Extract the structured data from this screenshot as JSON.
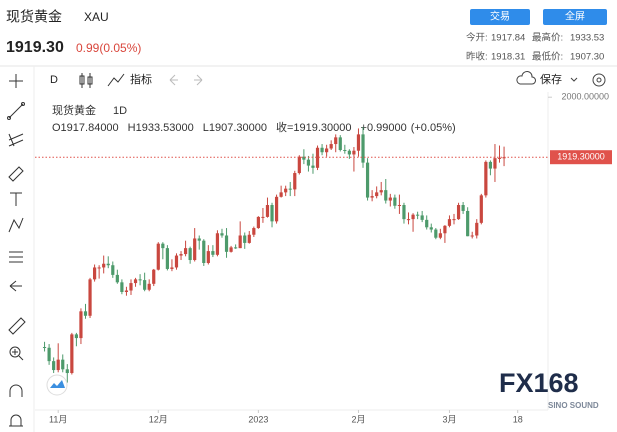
{
  "header": {
    "title": "现货黄金",
    "symbol": "XAU",
    "price": "1919.30",
    "change": "0.99(0.05%)",
    "buttons": [
      "交易",
      "全屏"
    ],
    "stats": [
      [
        "今开:",
        "1917.84",
        "最高价:",
        "1933.53"
      ],
      [
        "昨收:",
        "1918.31",
        "最低价:",
        "1907.30"
      ]
    ]
  },
  "toolbar": {
    "interval": "D",
    "indicators": "指标",
    "save": "保存"
  },
  "chart_data": {
    "type": "candlestick",
    "title": "现货黄金",
    "interval": "1D",
    "ohlc_legend": [
      "O1917.84000",
      "H1933.53000",
      "L1907.30000",
      "收=1919.30000",
      "+0.99000",
      "(+0.05%)"
    ],
    "up_color": "#c9473f",
    "down_color": "#4d9a6b",
    "ohlc": [
      [
        1664,
        1671,
        1658,
        1663
      ],
      [
        1663,
        1668,
        1640,
        1645
      ],
      [
        1645,
        1650,
        1629,
        1633
      ],
      [
        1633,
        1669,
        1630,
        1647
      ],
      [
        1647,
        1654,
        1630,
        1634
      ],
      [
        1634,
        1641,
        1616,
        1629
      ],
      [
        1629,
        1683,
        1627,
        1681
      ],
      [
        1681,
        1683,
        1665,
        1676
      ],
      [
        1676,
        1716,
        1668,
        1712
      ],
      [
        1712,
        1722,
        1702,
        1706
      ],
      [
        1706,
        1757,
        1703,
        1755
      ],
      [
        1755,
        1775,
        1752,
        1771
      ],
      [
        1771,
        1774,
        1756,
        1771
      ],
      [
        1771,
        1787,
        1763,
        1776
      ],
      [
        1776,
        1786,
        1770,
        1774
      ],
      [
        1774,
        1779,
        1757,
        1761
      ],
      [
        1761,
        1768,
        1749,
        1751
      ],
      [
        1751,
        1755,
        1735,
        1738
      ],
      [
        1738,
        1745,
        1733,
        1740
      ],
      [
        1740,
        1755,
        1734,
        1750
      ],
      [
        1750,
        1757,
        1745,
        1755
      ],
      [
        1755,
        1762,
        1747,
        1754
      ],
      [
        1754,
        1764,
        1739,
        1741
      ],
      [
        1741,
        1755,
        1739,
        1749
      ],
      [
        1749,
        1769,
        1746,
        1768
      ],
      [
        1768,
        1805,
        1767,
        1803
      ],
      [
        1803,
        1805,
        1782,
        1797
      ],
      [
        1797,
        1801,
        1767,
        1769
      ],
      [
        1769,
        1782,
        1766,
        1771
      ],
      [
        1771,
        1790,
        1768,
        1787
      ],
      [
        1787,
        1793,
        1781,
        1789
      ],
      [
        1789,
        1807,
        1786,
        1797
      ],
      [
        1797,
        1799,
        1776,
        1781
      ],
      [
        1781,
        1824,
        1779,
        1810
      ],
      [
        1810,
        1814,
        1795,
        1807
      ],
      [
        1807,
        1809,
        1773,
        1777
      ],
      [
        1777,
        1801,
        1775,
        1793
      ],
      [
        1793,
        1801,
        1785,
        1788
      ],
      [
        1788,
        1821,
        1786,
        1817
      ],
      [
        1817,
        1823,
        1811,
        1814
      ],
      [
        1814,
        1824,
        1784,
        1792
      ],
      [
        1792,
        1800,
        1791,
        1798
      ],
      [
        1798,
        1802,
        1796,
        1797
      ],
      [
        1797,
        1833,
        1797,
        1814
      ],
      [
        1814,
        1818,
        1796,
        1804
      ],
      [
        1804,
        1820,
        1803,
        1815
      ],
      [
        1815,
        1826,
        1812,
        1824
      ],
      [
        1824,
        1840,
        1823,
        1839
      ],
      [
        1839,
        1851,
        1831,
        1839
      ],
      [
        1839,
        1865,
        1838,
        1855
      ],
      [
        1855,
        1858,
        1825,
        1833
      ],
      [
        1833,
        1869,
        1830,
        1866
      ],
      [
        1866,
        1881,
        1865,
        1872
      ],
      [
        1872,
        1881,
        1867,
        1877
      ],
      [
        1877,
        1886,
        1867,
        1876
      ],
      [
        1876,
        1901,
        1867,
        1898
      ],
      [
        1898,
        1922,
        1896,
        1920
      ],
      [
        1920,
        1930,
        1910,
        1916
      ],
      [
        1916,
        1921,
        1900,
        1908
      ],
      [
        1908,
        1924,
        1897,
        1905
      ],
      [
        1905,
        1935,
        1902,
        1932
      ],
      [
        1932,
        1937,
        1922,
        1926
      ],
      [
        1926,
        1936,
        1920,
        1931
      ],
      [
        1931,
        1942,
        1929,
        1937
      ],
      [
        1937,
        1950,
        1926,
        1946
      ],
      [
        1946,
        1949,
        1927,
        1929
      ],
      [
        1929,
        1936,
        1924,
        1928
      ],
      [
        1928,
        1930,
        1917,
        1923
      ],
      [
        1923,
        1933,
        1900,
        1928
      ],
      [
        1928,
        1958,
        1920,
        1950
      ],
      [
        1950,
        1960,
        1905,
        1912
      ],
      [
        1912,
        1918,
        1861,
        1865
      ],
      [
        1865,
        1875,
        1860,
        1867
      ],
      [
        1867,
        1880,
        1864,
        1872
      ],
      [
        1872,
        1886,
        1868,
        1875
      ],
      [
        1875,
        1890,
        1857,
        1861
      ],
      [
        1861,
        1870,
        1853,
        1865
      ],
      [
        1865,
        1869,
        1850,
        1854
      ],
      [
        1854,
        1869,
        1843,
        1855
      ],
      [
        1855,
        1858,
        1830,
        1836
      ],
      [
        1836,
        1845,
        1829,
        1836
      ],
      [
        1836,
        1844,
        1819,
        1842
      ],
      [
        1842,
        1846,
        1836,
        1841
      ],
      [
        1841,
        1847,
        1832,
        1835
      ],
      [
        1835,
        1841,
        1822,
        1825
      ],
      [
        1825,
        1830,
        1818,
        1822
      ],
      [
        1822,
        1824,
        1809,
        1811
      ],
      [
        1811,
        1823,
        1809,
        1817
      ],
      [
        1817,
        1828,
        1804,
        1827
      ],
      [
        1827,
        1841,
        1825,
        1836
      ],
      [
        1836,
        1843,
        1829,
        1836
      ],
      [
        1836,
        1858,
        1835,
        1855
      ],
      [
        1855,
        1859,
        1843,
        1847
      ],
      [
        1847,
        1852,
        1813,
        1813
      ],
      [
        1813,
        1819,
        1810,
        1814
      ],
      [
        1814,
        1836,
        1810,
        1831
      ],
      [
        1831,
        1870,
        1829,
        1868
      ],
      [
        1868,
        1915,
        1865,
        1913
      ],
      [
        1913,
        1915,
        1895,
        1904
      ],
      [
        1904,
        1937,
        1886,
        1918
      ],
      [
        1918,
        1935,
        1912,
        1918.31
      ],
      [
        1917.84,
        1933.53,
        1907.3,
        1919.3
      ]
    ],
    "xlim": [
      -1,
      110
    ],
    "xticks": [
      {
        "value": 3,
        "label": "11月"
      },
      {
        "value": 25,
        "label": "12月"
      },
      {
        "value": 47,
        "label": "2023"
      },
      {
        "value": 69,
        "label": "2月"
      },
      {
        "value": 89,
        "label": "3月"
      },
      {
        "value": 104,
        "label": "18"
      }
    ],
    "ylim": [
      1586,
      2007
    ],
    "yticks": [
      {
        "value": 2000,
        "label": "2000.00000"
      }
    ],
    "price_line": {
      "value": 1919.3,
      "label": "1919.30000",
      "color": "#e0524b"
    }
  },
  "watermark": {
    "brand": "FX168",
    "sub": "SINO SOUND"
  }
}
